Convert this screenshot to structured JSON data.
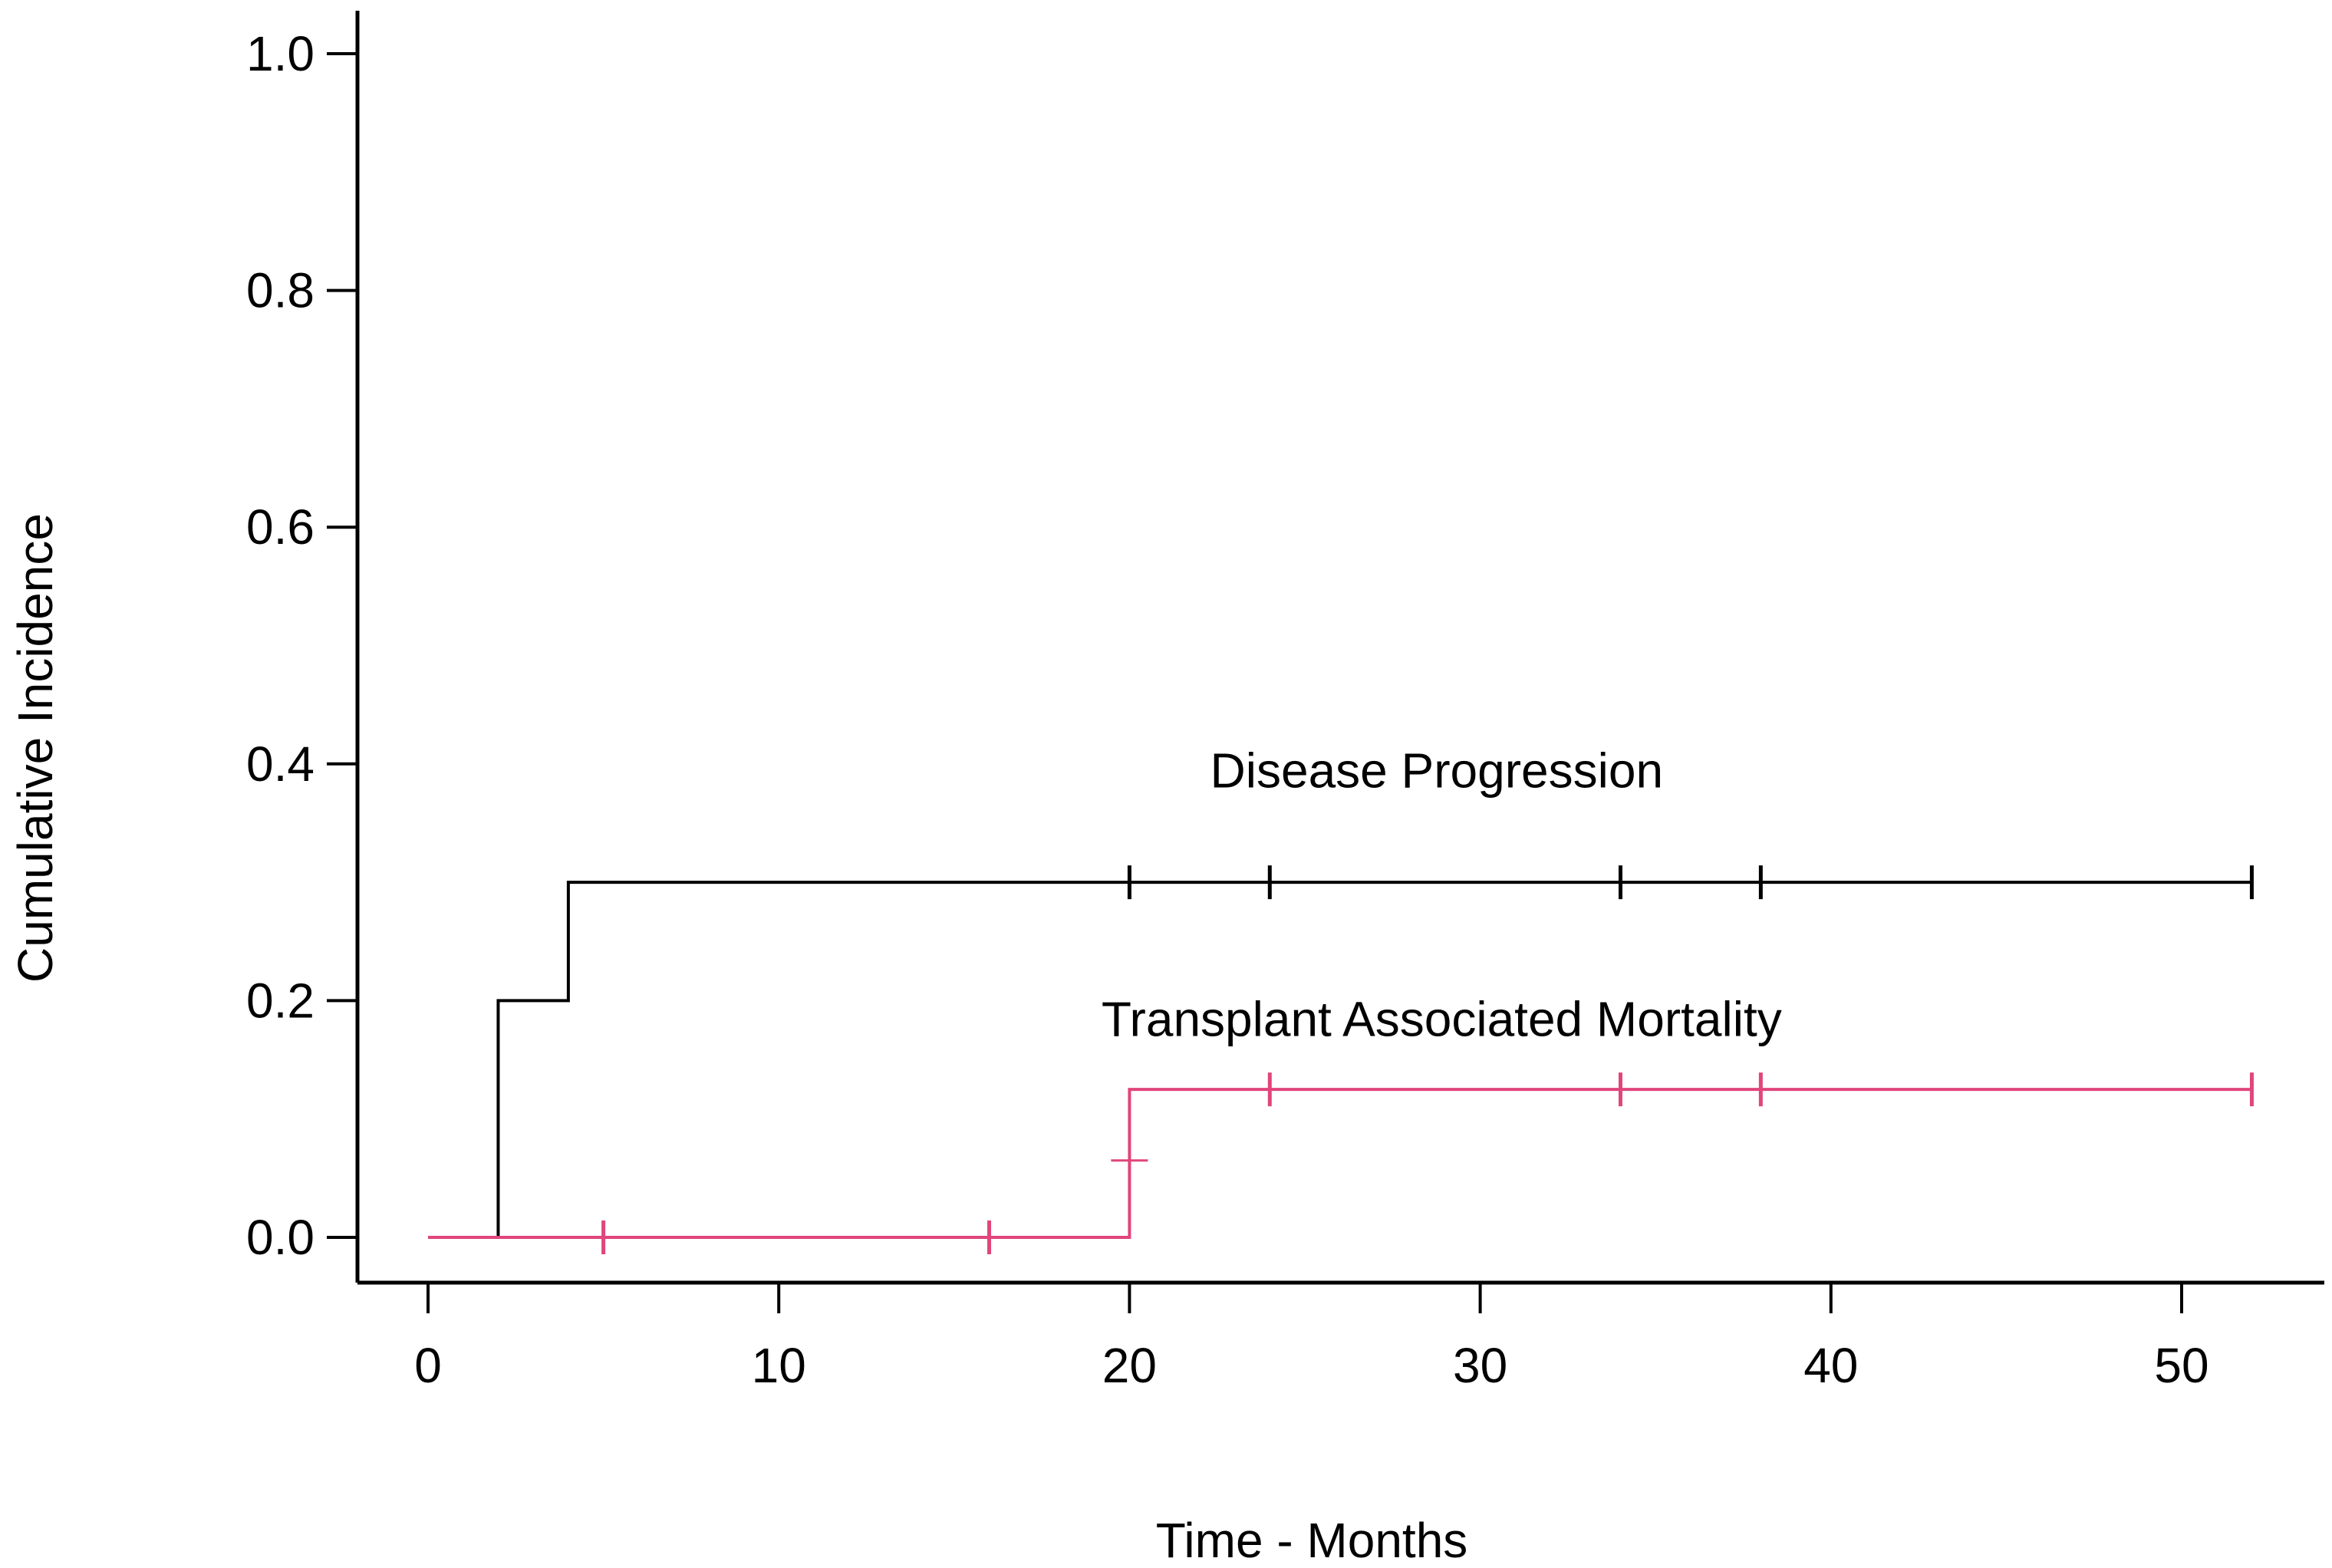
{
  "chart_data": {
    "type": "line",
    "title": "",
    "xlabel": "Time - Months",
    "ylabel": "Cumulative Incidence",
    "xlim": [
      0,
      52
    ],
    "ylim": [
      0,
      1.0
    ],
    "x_ticks": [
      0,
      10,
      20,
      30,
      40,
      50
    ],
    "y_ticks": [
      0.0,
      0.2,
      0.4,
      0.6,
      0.8,
      1.0
    ],
    "x_tick_labels": [
      "0",
      "10",
      "20",
      "30",
      "40",
      "50"
    ],
    "y_tick_labels": [
      "0.0",
      "0.2",
      "0.4",
      "0.6",
      "0.8",
      "1.0"
    ],
    "grid": false,
    "step": true,
    "series": [
      {
        "name": "Disease Progression",
        "color": "#000000",
        "x": [
          2,
          4,
          52
        ],
        "y": [
          0.2,
          0.3,
          0.3
        ],
        "censor_x": [
          20,
          24,
          34,
          38,
          52
        ],
        "start_at_zero": true,
        "line_start_x": 2
      },
      {
        "name": "Transplant Associated Mortality",
        "color": "#e0457b",
        "x": [
          0,
          20,
          52
        ],
        "y": [
          0.0,
          0.125,
          0.125
        ],
        "censor_x": [
          5,
          16,
          24,
          34,
          38,
          52
        ],
        "start_at_zero": true,
        "line_start_x": 0,
        "mid_marker": {
          "x": 20,
          "y": 0.065
        }
      }
    ],
    "annotations": [
      {
        "text": "Disease Progression",
        "x": 22.3,
        "y": 0.38
      },
      {
        "text": "Transplant Associated Mortality",
        "x": 19.2,
        "y": 0.17
      }
    ]
  }
}
